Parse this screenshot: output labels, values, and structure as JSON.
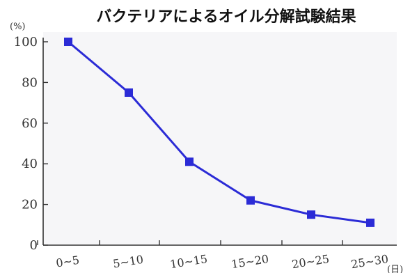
{
  "chart_data": {
    "type": "line",
    "title": "バクテリアによるオイル分解試験結果",
    "ylabel": "(%)",
    "xlabel": "(日)",
    "categories": [
      "0~5",
      "5~10",
      "10~15",
      "15~20",
      "20~25",
      "25~30"
    ],
    "series": [
      {
        "values": [
          100,
          75,
          41,
          22,
          15,
          11
        ]
      }
    ],
    "ylim": [
      0,
      100
    ],
    "yticks": [
      0,
      20,
      40,
      60,
      80,
      100
    ],
    "grid": false,
    "colors": {
      "line": "#2b2bd6",
      "marker": "#2b2bd6",
      "axis": "#333333",
      "plot_bg": "#f6f6f8"
    }
  }
}
